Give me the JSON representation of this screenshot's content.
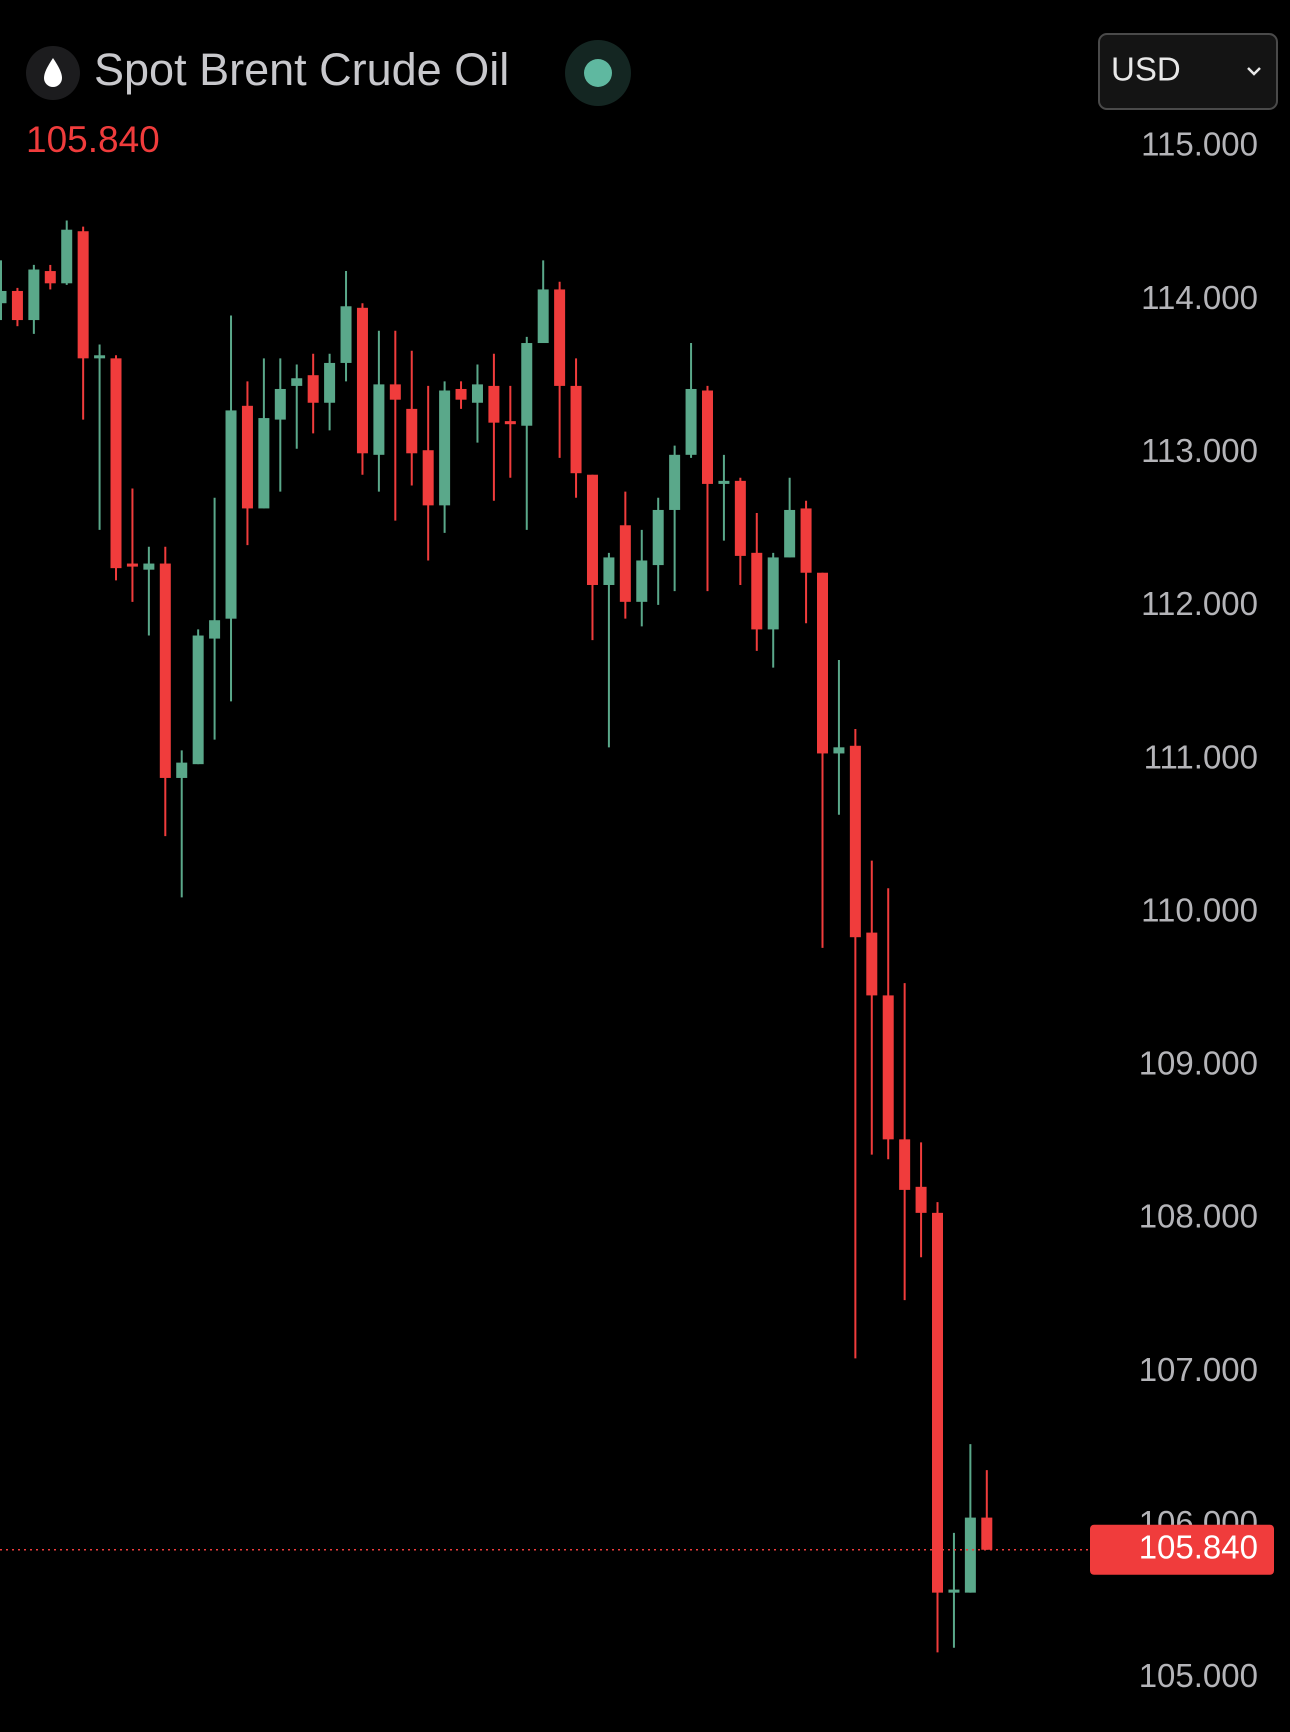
{
  "chart_data": {
    "type": "candlestick",
    "title": "Spot Brent Crude Oil",
    "currency": "USD",
    "last_price": {
      "value": 105.84,
      "label": "105.840"
    },
    "up_color": "#5aa88a",
    "down_color": "#f03c3c",
    "ylim": [
      104.65,
      115.96
    ],
    "yticks": [
      {
        "value": 105,
        "label": "105.000"
      },
      {
        "value": 106,
        "label": "106.000"
      },
      {
        "value": 107,
        "label": "107.000"
      },
      {
        "value": 108,
        "label": "108.000"
      },
      {
        "value": 109,
        "label": "109.000"
      },
      {
        "value": 110,
        "label": "110.000"
      },
      {
        "value": 111,
        "label": "111.000"
      },
      {
        "value": 112,
        "label": "112.000"
      },
      {
        "value": 113,
        "label": "113.000"
      },
      {
        "value": 114,
        "label": "114.000"
      },
      {
        "value": 115,
        "label": "115.000"
      }
    ],
    "open": [
      113.98,
      114.06,
      113.87,
      114.19,
      114.11,
      114.45,
      113.62,
      113.62,
      112.28,
      112.24,
      112.28,
      110.88,
      110.97,
      111.79,
      111.92,
      113.31,
      112.64,
      113.22,
      113.44,
      113.51,
      113.33,
      113.59,
      113.95,
      112.99,
      113.45,
      113.29,
      113.02,
      112.66,
      113.42,
      113.33,
      113.44,
      113.21,
      113.18,
      113.72,
      114.07,
      113.44,
      112.86,
      112.14,
      112.53,
      112.03,
      112.27,
      112.63,
      112.99,
      113.41,
      112.8,
      112.82,
      112.35,
      111.85,
      112.32,
      112.64,
      112.22,
      111.04,
      111.09,
      109.87,
      109.46,
      108.52,
      108.21,
      108.04,
      105.56,
      105.56,
      106.05
    ],
    "high": [
      114.26,
      114.08,
      114.23,
      114.23,
      114.52,
      114.48,
      113.71,
      113.64,
      112.77,
      112.39,
      112.39,
      111.06,
      111.85,
      112.71,
      113.9,
      113.47,
      113.62,
      113.62,
      113.58,
      113.65,
      113.65,
      114.19,
      113.98,
      113.8,
      113.8,
      113.67,
      113.44,
      113.47,
      113.47,
      113.58,
      113.65,
      113.44,
      113.76,
      114.26,
      114.12,
      113.62,
      112.86,
      112.35,
      112.75,
      112.5,
      112.71,
      113.05,
      113.72,
      113.44,
      112.99,
      112.84,
      112.61,
      112.35,
      112.84,
      112.69,
      112.22,
      111.65,
      111.2,
      110.34,
      110.16,
      109.54,
      108.5,
      108.11,
      105.95,
      106.53,
      106.36
    ],
    "low": [
      113.87,
      113.83,
      113.78,
      114.07,
      114.1,
      113.22,
      112.5,
      112.17,
      112.03,
      111.81,
      110.5,
      110.1,
      110.97,
      111.13,
      111.38,
      112.4,
      112.64,
      112.75,
      113.03,
      113.13,
      113.15,
      113.47,
      112.86,
      112.75,
      112.56,
      112.79,
      112.3,
      112.48,
      113.29,
      113.07,
      112.69,
      112.84,
      112.5,
      113.72,
      112.97,
      112.71,
      111.78,
      111.08,
      111.92,
      111.87,
      112.01,
      112.1,
      112.97,
      112.1,
      112.43,
      112.14,
      111.71,
      111.6,
      112.32,
      111.89,
      109.77,
      110.64,
      107.09,
      108.42,
      108.39,
      107.47,
      107.75,
      105.17,
      105.2,
      105.56,
      105.84
    ],
    "close": [
      114.06,
      113.87,
      114.2,
      114.11,
      114.46,
      113.62,
      113.64,
      112.25,
      112.26,
      112.28,
      110.88,
      110.98,
      111.81,
      111.91,
      113.28,
      112.64,
      113.23,
      113.42,
      113.49,
      113.33,
      113.59,
      113.96,
      113.0,
      113.45,
      113.35,
      113.0,
      112.66,
      113.41,
      113.35,
      113.45,
      113.2,
      113.19,
      113.72,
      114.07,
      113.44,
      112.87,
      112.14,
      112.32,
      112.03,
      112.3,
      112.63,
      112.99,
      113.42,
      112.8,
      112.82,
      112.33,
      111.85,
      112.32,
      112.63,
      112.22,
      111.04,
      111.08,
      109.84,
      109.46,
      108.52,
      108.19,
      108.04,
      105.56,
      105.58,
      106.05,
      105.84
    ]
  }
}
